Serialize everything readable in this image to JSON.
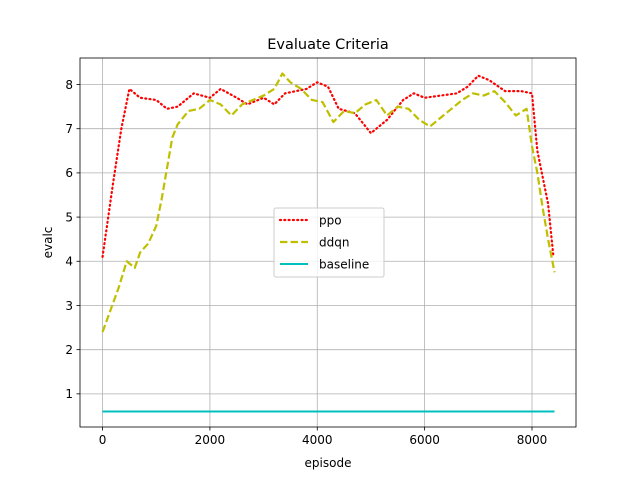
{
  "chart_data": {
    "type": "line",
    "title": "Evaluate Criteria",
    "xlabel": "episode",
    "ylabel": "evalc",
    "xlim": [
      -420,
      8820
    ],
    "ylim": [
      0.25,
      8.6
    ],
    "xticks": [
      0,
      2000,
      4000,
      6000,
      8000
    ],
    "yticks": [
      1,
      2,
      3,
      4,
      5,
      6,
      7,
      8
    ],
    "grid": true,
    "legend_position": "center",
    "series": [
      {
        "name": "ppo",
        "color": "#ff0000",
        "style": "dotted",
        "x": [
          0,
          200,
          350,
          500,
          700,
          1000,
          1200,
          1400,
          1700,
          2000,
          2200,
          2500,
          2700,
          3000,
          3200,
          3400,
          3600,
          3800,
          4000,
          4200,
          4400,
          4700,
          5000,
          5300,
          5600,
          5800,
          6000,
          6300,
          6600,
          6800,
          7000,
          7200,
          7500,
          7800,
          8000,
          8100,
          8300,
          8400
        ],
        "y": [
          4.1,
          5.8,
          7.0,
          7.9,
          7.7,
          7.65,
          7.45,
          7.5,
          7.8,
          7.7,
          7.9,
          7.7,
          7.55,
          7.7,
          7.55,
          7.8,
          7.85,
          7.9,
          8.05,
          7.95,
          7.45,
          7.35,
          6.9,
          7.2,
          7.65,
          7.8,
          7.7,
          7.75,
          7.8,
          7.95,
          8.2,
          8.1,
          7.85,
          7.85,
          7.8,
          6.5,
          5.3,
          4.1
        ]
      },
      {
        "name": "ddqn",
        "color": "#bfbf00",
        "style": "dashed",
        "x": [
          0,
          150,
          300,
          450,
          600,
          700,
          850,
          1000,
          1100,
          1200,
          1300,
          1400,
          1600,
          1800,
          2000,
          2200,
          2400,
          2600,
          2800,
          3000,
          3200,
          3350,
          3500,
          3700,
          3900,
          4100,
          4300,
          4500,
          4700,
          4900,
          5100,
          5300,
          5500,
          5700,
          5900,
          6100,
          6300,
          6500,
          6700,
          6900,
          7100,
          7300,
          7500,
          7700,
          7900,
          8000,
          8100,
          8200,
          8300,
          8420
        ],
        "y": [
          2.4,
          2.9,
          3.4,
          4.0,
          3.85,
          4.2,
          4.4,
          4.8,
          5.4,
          6.1,
          6.8,
          7.1,
          7.4,
          7.45,
          7.65,
          7.55,
          7.3,
          7.55,
          7.65,
          7.75,
          7.9,
          8.25,
          8.05,
          7.9,
          7.65,
          7.6,
          7.15,
          7.4,
          7.35,
          7.55,
          7.65,
          7.3,
          7.5,
          7.45,
          7.2,
          7.05,
          7.25,
          7.45,
          7.65,
          7.8,
          7.75,
          7.85,
          7.6,
          7.3,
          7.45,
          6.6,
          6.0,
          5.2,
          4.5,
          3.75
        ]
      },
      {
        "name": "baseline",
        "color": "#00bfbf",
        "style": "solid",
        "x": [
          0,
          8420
        ],
        "y": [
          0.6,
          0.6
        ]
      }
    ]
  }
}
